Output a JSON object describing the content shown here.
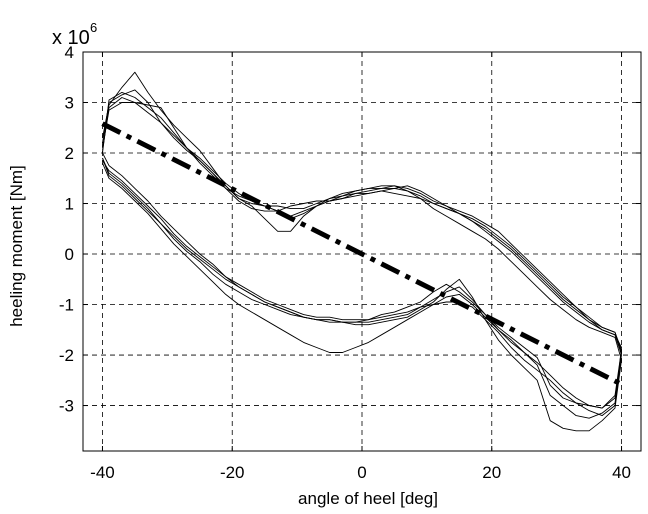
{
  "chart_data": {
    "type": "line",
    "xlabel": "angle of heel [deg]",
    "ylabel": "heeling moment [Nm]",
    "y_multiplier_prefix": "x 10",
    "y_multiplier_exponent": "6",
    "xlim": [
      -43,
      43
    ],
    "ylim": [
      -3.9,
      4
    ],
    "xticks": [
      -40,
      -20,
      0,
      20,
      40
    ],
    "yticks": [
      -3,
      -2,
      -1,
      0,
      1,
      2,
      3,
      4
    ],
    "grid": true,
    "series": [
      {
        "style": "dash-dot",
        "x": [
          -40,
          40
        ],
        "y": [
          2.58,
          -2.58
        ]
      },
      {
        "style": "solid",
        "x": [
          -40,
          -39,
          -37,
          -35,
          -33,
          -31,
          -29,
          -27,
          -25,
          -23,
          -21,
          -19,
          -17,
          -15,
          -13,
          -11,
          -9,
          -7,
          -5,
          -3,
          -1,
          1,
          3,
          5,
          7,
          9,
          11,
          13,
          15,
          17,
          19,
          21,
          23,
          25,
          27,
          29,
          31,
          33,
          35,
          37,
          39,
          40,
          39,
          37,
          35,
          33,
          31,
          29,
          27,
          25,
          23,
          21,
          19,
          17,
          15,
          13,
          11,
          9,
          7,
          5,
          3,
          1,
          -1,
          -3,
          -5,
          -7,
          -9,
          -11,
          -13,
          -15,
          -17,
          -19,
          -21,
          -23,
          -25,
          -27,
          -29,
          -31,
          -33,
          -35,
          -37,
          -39,
          -40
        ],
        "y": [
          2.0,
          3.05,
          3.2,
          3.1,
          2.9,
          2.7,
          2.4,
          2.1,
          1.9,
          1.65,
          1.4,
          1.2,
          1.05,
          0.95,
          0.95,
          0.9,
          0.9,
          1.0,
          1.1,
          1.15,
          1.2,
          1.25,
          1.3,
          1.35,
          1.3,
          1.2,
          1.05,
          0.95,
          0.85,
          0.75,
          0.6,
          0.45,
          0.2,
          -0.05,
          -0.3,
          -0.55,
          -0.8,
          -1.05,
          -1.3,
          -1.5,
          -1.6,
          -1.85,
          -3.0,
          -3.2,
          -3.1,
          -2.95,
          -2.75,
          -2.5,
          -2.3,
          -2.1,
          -1.85,
          -1.55,
          -1.3,
          -1.05,
          -0.95,
          -0.95,
          -1.0,
          -1.05,
          -1.15,
          -1.2,
          -1.25,
          -1.3,
          -1.35,
          -1.35,
          -1.3,
          -1.3,
          -1.25,
          -1.2,
          -1.1,
          -1.0,
          -0.9,
          -0.75,
          -0.6,
          -0.4,
          -0.15,
          0.05,
          0.3,
          0.6,
          0.85,
          1.1,
          1.35,
          1.55,
          1.9
        ]
      },
      {
        "style": "solid",
        "x": [
          -40,
          -39,
          -37,
          -35,
          -33,
          -31,
          -29,
          -27,
          -25,
          -23,
          -21,
          -19,
          -17,
          -15,
          -13,
          -11,
          -9,
          -7,
          -5,
          -3,
          -1,
          1,
          3,
          5,
          7,
          9,
          11,
          13,
          15,
          17,
          19,
          21,
          23,
          25,
          27,
          29,
          31,
          33,
          35,
          37,
          39,
          40,
          39,
          37,
          35,
          33,
          31,
          29,
          27,
          25,
          23,
          21,
          19,
          17,
          15,
          13,
          11,
          9,
          7,
          5,
          3,
          1,
          -1,
          -3,
          -5,
          -7,
          -9,
          -11,
          -13,
          -15,
          -17,
          -19,
          -21,
          -23,
          -25,
          -27,
          -29,
          -31,
          -33,
          -35,
          -37,
          -39,
          -40
        ],
        "y": [
          2.3,
          2.95,
          3.3,
          3.6,
          3.2,
          2.85,
          2.55,
          2.3,
          2.05,
          1.7,
          1.35,
          1.1,
          0.95,
          0.7,
          0.45,
          0.45,
          0.75,
          0.95,
          1.1,
          1.2,
          1.25,
          1.3,
          1.35,
          1.35,
          1.25,
          1.1,
          0.9,
          0.75,
          0.6,
          0.45,
          0.3,
          0.1,
          -0.15,
          -0.4,
          -0.65,
          -0.9,
          -1.1,
          -1.3,
          -1.45,
          -1.55,
          -1.65,
          -2.1,
          -3.05,
          -3.3,
          -3.5,
          -3.5,
          -3.45,
          -3.3,
          -2.5,
          -2.25,
          -2.0,
          -1.7,
          -1.3,
          -0.85,
          -0.5,
          -0.7,
          -0.95,
          -1.1,
          -1.25,
          -1.3,
          -1.35,
          -1.4,
          -1.4,
          -1.35,
          -1.3,
          -1.3,
          -1.25,
          -1.15,
          -1.05,
          -0.95,
          -0.8,
          -0.65,
          -0.45,
          -0.2,
          0.0,
          0.25,
          0.5,
          0.75,
          1.05,
          1.3,
          1.55,
          1.75,
          2.0
        ]
      },
      {
        "style": "solid",
        "x": [
          -40,
          -39,
          -37,
          -35,
          -33,
          -31,
          -29,
          -27,
          -25,
          -23,
          -21,
          -19,
          -17,
          -15,
          -13,
          -11,
          -9,
          -7,
          -5,
          -3,
          -1,
          1,
          3,
          5,
          7,
          9,
          11,
          13,
          15,
          17,
          19,
          21,
          23,
          25,
          27,
          29,
          31,
          33,
          35,
          37,
          39,
          40,
          39,
          37,
          35,
          33,
          31,
          29,
          27,
          25,
          23,
          21,
          19,
          17,
          15,
          13,
          11,
          9,
          7,
          5,
          3,
          1,
          -1,
          -3,
          -5,
          -7,
          -9,
          -11,
          -13,
          -15,
          -17,
          -19,
          -21,
          -23,
          -25,
          -27,
          -29,
          -31,
          -33,
          -35,
          -37,
          -39,
          -40
        ],
        "y": [
          2.1,
          2.85,
          3.0,
          3.0,
          2.95,
          2.9,
          2.5,
          2.1,
          1.8,
          1.55,
          1.3,
          1.15,
          1.05,
          0.95,
          0.85,
          0.75,
          0.85,
          0.95,
          1.05,
          1.1,
          1.2,
          1.2,
          1.25,
          1.3,
          1.25,
          1.15,
          1.0,
          0.9,
          0.8,
          0.65,
          0.5,
          0.3,
          0.1,
          -0.15,
          -0.4,
          -0.65,
          -0.9,
          -1.1,
          -1.3,
          -1.45,
          -1.55,
          -1.95,
          -2.85,
          -3.05,
          -3.0,
          -2.95,
          -2.85,
          -2.6,
          -2.05,
          -1.85,
          -1.65,
          -1.45,
          -1.2,
          -0.95,
          -0.75,
          -0.6,
          -0.75,
          -0.95,
          -1.05,
          -1.15,
          -1.2,
          -1.3,
          -1.3,
          -1.3,
          -1.25,
          -1.25,
          -1.2,
          -1.1,
          -1.0,
          -0.9,
          -0.75,
          -0.6,
          -0.45,
          -0.25,
          -0.05,
          0.15,
          0.4,
          0.7,
          0.95,
          1.2,
          1.45,
          1.65,
          1.85
        ]
      },
      {
        "style": "solid",
        "x": [
          -40,
          -39,
          -37,
          -35,
          -33,
          -31,
          -29,
          -27,
          -25,
          -23,
          -21,
          -19,
          -17,
          -15,
          -13,
          -11,
          -9,
          -7,
          -5,
          -3,
          -1,
          1,
          3,
          5,
          7,
          9,
          11,
          13,
          15,
          17,
          19,
          21,
          23,
          25,
          27,
          29,
          31,
          33,
          35,
          37,
          39,
          40,
          39,
          37,
          35,
          33,
          31,
          29,
          27,
          25,
          23,
          21,
          19,
          17,
          15,
          13,
          11,
          9,
          7,
          5,
          3,
          1,
          -1,
          -3,
          -5,
          -7,
          -9,
          -11,
          -13,
          -15,
          -17,
          -19,
          -21,
          -23,
          -25,
          -27,
          -29,
          -31,
          -33,
          -35,
          -37,
          -39,
          -40
        ],
        "y": [
          2.2,
          3.0,
          3.15,
          3.25,
          3.0,
          2.6,
          2.3,
          2.05,
          1.85,
          1.6,
          1.35,
          1.1,
          1.0,
          0.95,
          0.85,
          0.7,
          0.8,
          0.95,
          1.05,
          1.15,
          1.25,
          1.3,
          1.3,
          1.3,
          1.35,
          1.25,
          1.1,
          0.95,
          0.8,
          0.65,
          0.45,
          0.25,
          0.05,
          -0.2,
          -0.45,
          -0.7,
          -0.95,
          -1.15,
          -1.35,
          -1.5,
          -1.6,
          -2.0,
          -2.95,
          -3.15,
          -3.25,
          -3.2,
          -3.0,
          -2.8,
          -2.2,
          -1.95,
          -1.7,
          -1.5,
          -1.2,
          -0.9,
          -0.65,
          -0.75,
          -0.9,
          -1.05,
          -1.2,
          -1.25,
          -1.3,
          -1.35,
          -1.35,
          -1.35,
          -1.35,
          -1.3,
          -1.25,
          -1.15,
          -1.05,
          -0.95,
          -0.8,
          -0.65,
          -0.5,
          -0.3,
          -0.1,
          0.1,
          0.35,
          0.6,
          0.9,
          1.15,
          1.4,
          1.6,
          1.9
        ]
      },
      {
        "style": "solid",
        "x": [
          -40,
          -39,
          -37,
          -35,
          -33,
          -31,
          -29,
          -27,
          -25,
          -23,
          -21,
          -19,
          -17,
          -15,
          -13,
          -11,
          -9,
          -7,
          -5,
          -3,
          -1,
          1,
          3,
          5,
          7,
          9,
          11,
          13,
          15,
          17,
          19,
          21,
          23,
          25,
          27,
          29,
          31,
          33,
          35,
          37,
          39,
          40,
          39,
          37,
          35,
          33,
          31,
          29,
          27,
          25,
          23,
          21,
          19,
          17,
          15,
          13,
          11,
          9,
          7,
          5,
          3,
          1,
          -1,
          -3,
          -5,
          -7,
          -9,
          -11,
          -13,
          -15,
          -17,
          -19,
          -21,
          -23,
          -25,
          -27,
          -29,
          -31,
          -33,
          -35,
          -37,
          -39,
          -40
        ],
        "y": [
          2.05,
          2.9,
          3.1,
          3.0,
          2.8,
          2.6,
          2.35,
          2.1,
          1.85,
          1.6,
          1.3,
          1.05,
          0.9,
          0.85,
          0.85,
          0.95,
          1.0,
          1.05,
          1.05,
          1.1,
          1.15,
          1.2,
          1.25,
          1.2,
          1.15,
          1.1,
          1.0,
          0.9,
          0.8,
          0.7,
          0.55,
          0.35,
          0.15,
          -0.1,
          -0.35,
          -0.6,
          -0.85,
          -1.05,
          -1.25,
          -1.45,
          -1.55,
          -1.9,
          -2.8,
          -3.05,
          -3.0,
          -2.85,
          -2.65,
          -2.4,
          -2.15,
          -1.95,
          -1.75,
          -1.5,
          -1.25,
          -1.0,
          -0.8,
          -0.85,
          -1.0,
          -1.15,
          -1.3,
          -1.45,
          -1.6,
          -1.75,
          -1.85,
          -1.95,
          -1.95,
          -1.85,
          -1.75,
          -1.6,
          -1.45,
          -1.3,
          -1.15,
          -1.0,
          -0.8,
          -0.55,
          -0.3,
          -0.05,
          0.2,
          0.5,
          0.8,
          1.05,
          1.3,
          1.5,
          1.8
        ]
      }
    ]
  }
}
